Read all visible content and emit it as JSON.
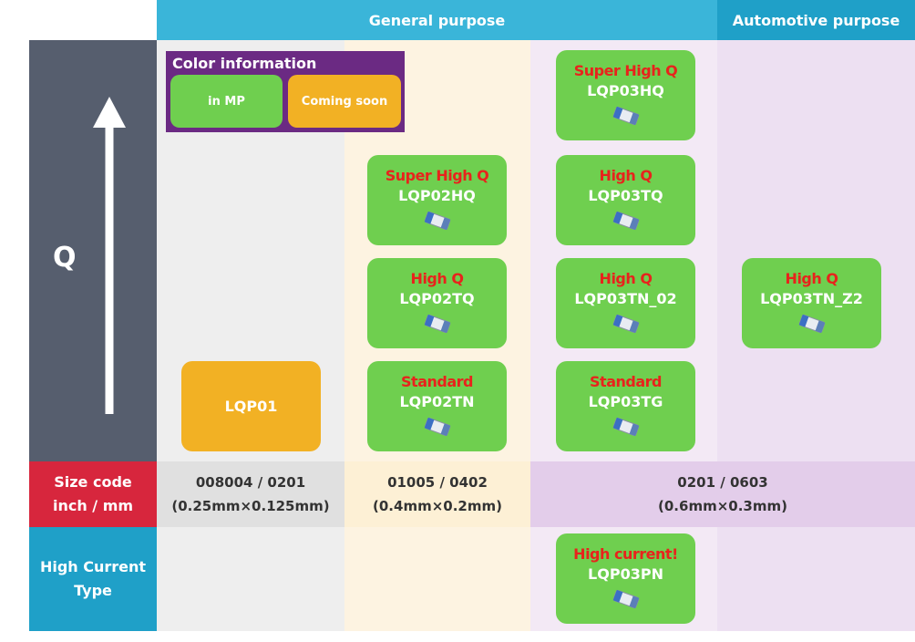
{
  "header": {
    "general": "General purpose",
    "automotive": "Automotive purpose"
  },
  "axis_label": "Q",
  "legend": {
    "title": "Color information",
    "items": [
      "in MP",
      "Coming soon"
    ]
  },
  "size_row": {
    "label": [
      "Size code",
      "inch / mm"
    ],
    "cells": [
      [
        "008004 / 0201",
        "(0.25mm×0.125mm)"
      ],
      [
        "01005 / 0402",
        "(0.4mm×0.2mm)"
      ],
      [
        "0201 / 0603",
        "(0.6mm×0.3mm)"
      ]
    ]
  },
  "current_row": {
    "label": [
      "High Current",
      "Type"
    ]
  },
  "cards": [
    {
      "part": "LQP01"
    },
    {
      "grade": "Super High Q",
      "part": "LQP02HQ"
    },
    {
      "grade": "High Q",
      "part": "LQP02TQ"
    },
    {
      "grade": "Standard",
      "part": "LQP02TN"
    },
    {
      "grade": "Super High Q",
      "part": "LQP03HQ"
    },
    {
      "grade": "High Q",
      "part": "LQP03TQ"
    },
    {
      "grade": "High Q",
      "part": "LQP03TN_02"
    },
    {
      "grade": "Standard",
      "part": "LQP03TG"
    },
    {
      "grade": "High Q",
      "part": "LQP03TN_Z2"
    },
    {
      "grade": "High current!",
      "part": "LQP03PN"
    }
  ]
}
